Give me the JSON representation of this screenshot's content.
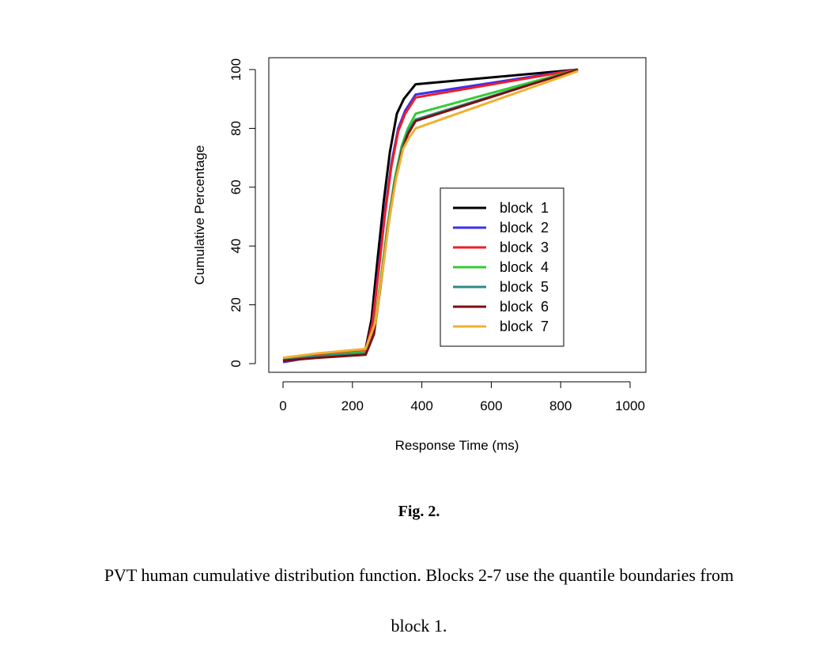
{
  "chart_data": {
    "type": "line",
    "xlabel": "Response Time (ms)",
    "ylabel": "Cumulative Percentage",
    "xlim": [
      0,
      1000
    ],
    "ylim": [
      0,
      100
    ],
    "xticks": [
      0,
      200,
      400,
      600,
      800,
      1000
    ],
    "yticks": [
      0,
      20,
      40,
      60,
      80,
      100
    ],
    "grid": false,
    "legend_position": "center-right",
    "series": [
      {
        "name": "block  1",
        "color": "#000000",
        "points": [
          [
            0,
            1
          ],
          [
            100,
            2.5
          ],
          [
            238,
            5
          ],
          [
            255,
            15
          ],
          [
            272,
            35
          ],
          [
            290,
            55
          ],
          [
            308,
            72
          ],
          [
            328,
            85
          ],
          [
            348,
            90
          ],
          [
            382,
            95
          ],
          [
            850,
            100
          ]
        ]
      },
      {
        "name": "block  2",
        "color": "#3b2ff0",
        "points": [
          [
            0,
            0.5
          ],
          [
            100,
            2.5
          ],
          [
            238,
            4.5
          ],
          [
            258,
            14
          ],
          [
            276,
            33
          ],
          [
            294,
            52
          ],
          [
            312,
            68
          ],
          [
            332,
            80
          ],
          [
            352,
            86
          ],
          [
            382,
            91.5
          ],
          [
            850,
            100
          ]
        ]
      },
      {
        "name": "block  3",
        "color": "#f01c28",
        "points": [
          [
            0,
            1.5
          ],
          [
            100,
            3
          ],
          [
            238,
            4.5
          ],
          [
            258,
            14
          ],
          [
            276,
            32
          ],
          [
            294,
            51
          ],
          [
            312,
            67
          ],
          [
            332,
            79
          ],
          [
            352,
            85
          ],
          [
            382,
            90.5
          ],
          [
            850,
            100
          ]
        ]
      },
      {
        "name": "block  4",
        "color": "#33cc33",
        "points": [
          [
            0,
            1.5
          ],
          [
            100,
            2.5
          ],
          [
            238,
            4
          ],
          [
            262,
            12
          ],
          [
            282,
            29
          ],
          [
            302,
            48
          ],
          [
            322,
            63
          ],
          [
            342,
            74
          ],
          [
            360,
            80
          ],
          [
            382,
            85
          ],
          [
            850,
            100
          ]
        ]
      },
      {
        "name": "block  5",
        "color": "#2e8b84",
        "points": [
          [
            0,
            1.5
          ],
          [
            100,
            2.5
          ],
          [
            238,
            3.5
          ],
          [
            262,
            11
          ],
          [
            282,
            28
          ],
          [
            302,
            47
          ],
          [
            322,
            62
          ],
          [
            342,
            73
          ],
          [
            360,
            79
          ],
          [
            382,
            83
          ],
          [
            850,
            100
          ]
        ]
      },
      {
        "name": "block  6",
        "color": "#7a1010",
        "points": [
          [
            0,
            1
          ],
          [
            100,
            2
          ],
          [
            238,
            3
          ],
          [
            262,
            10
          ],
          [
            282,
            27
          ],
          [
            302,
            46
          ],
          [
            322,
            61
          ],
          [
            342,
            72
          ],
          [
            360,
            78
          ],
          [
            382,
            82.5
          ],
          [
            850,
            100
          ]
        ]
      },
      {
        "name": "block  7",
        "color": "#f0b030",
        "points": [
          [
            0,
            2
          ],
          [
            100,
            3.5
          ],
          [
            238,
            5
          ],
          [
            266,
            14
          ],
          [
            286,
            31
          ],
          [
            306,
            49
          ],
          [
            326,
            63
          ],
          [
            346,
            73
          ],
          [
            364,
            77
          ],
          [
            382,
            80
          ],
          [
            850,
            99.5
          ]
        ]
      }
    ]
  },
  "caption": {
    "title": "Fig. 2.",
    "line1": "PVT human cumulative distribution function. Blocks 2-7 use the quantile boundaries from",
    "line2": "block 1."
  }
}
